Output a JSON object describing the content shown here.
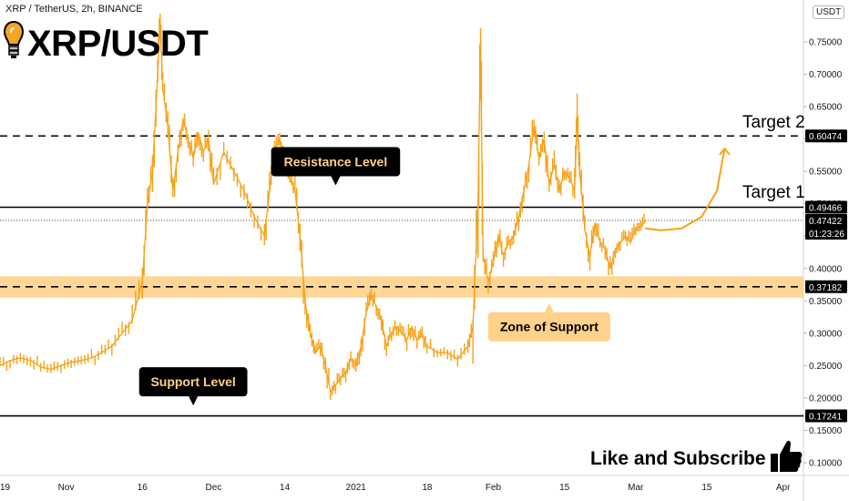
{
  "header": {
    "symbol_line": "XRP / TetherUS, 2h, BINANCE",
    "brand_title": "XRP/USDT",
    "currency": "USDT"
  },
  "chart_data": {
    "type": "line",
    "symbol": "XRP/USDT",
    "timeframe": "2h",
    "exchange": "BINANCE",
    "ylim": [
      0.095,
      0.78
    ],
    "y_ticks": [
      0.1,
      0.15,
      0.2,
      0.25,
      0.3,
      0.35,
      0.4,
      0.45,
      0.5,
      0.55,
      0.6,
      0.65,
      0.7,
      0.75
    ],
    "y_tick_labels": [
      "0.10000",
      "0.15000",
      "0.20000",
      "0.25000",
      "0.30000",
      "0.35000",
      "0.40000",
      "0.45000",
      "0.50000",
      "0.55000",
      "0.60000",
      "0.65000",
      "0.70000",
      "0.75000"
    ],
    "x_tick_labels": [
      "19",
      "Nov",
      "16",
      "Dec",
      "14",
      "2021",
      "18",
      "Feb",
      "15",
      "Mar",
      "15",
      "Apr"
    ],
    "series": [
      {
        "values": [
          [
            -4,
            0.25
          ],
          [
            -2,
            0.258
          ],
          [
            0,
            0.262
          ],
          [
            2,
            0.258
          ],
          [
            4,
            0.248
          ],
          [
            6,
            0.244
          ],
          [
            8,
            0.25
          ],
          [
            10,
            0.255
          ],
          [
            12,
            0.258
          ],
          [
            14,
            0.262
          ],
          [
            16,
            0.27
          ],
          [
            18,
            0.28
          ],
          [
            20,
            0.3
          ],
          [
            22,
            0.32
          ],
          [
            24,
            0.38
          ],
          [
            25,
            0.5
          ],
          [
            26,
            0.55
          ],
          [
            27,
            0.7
          ],
          [
            27.5,
            0.78
          ],
          [
            28,
            0.68
          ],
          [
            29,
            0.62
          ],
          [
            30,
            0.52
          ],
          [
            31,
            0.58
          ],
          [
            32,
            0.63
          ],
          [
            33,
            0.6
          ],
          [
            34,
            0.57
          ],
          [
            35,
            0.61
          ],
          [
            36,
            0.58
          ],
          [
            37,
            0.6
          ],
          [
            38,
            0.53
          ],
          [
            40,
            0.58
          ],
          [
            42,
            0.55
          ],
          [
            44,
            0.52
          ],
          [
            46,
            0.48
          ],
          [
            48,
            0.45
          ],
          [
            49,
            0.52
          ],
          [
            50,
            0.58
          ],
          [
            51,
            0.6
          ],
          [
            52,
            0.57
          ],
          [
            53,
            0.54
          ],
          [
            54,
            0.52
          ],
          [
            55,
            0.45
          ],
          [
            56,
            0.35
          ],
          [
            57,
            0.3
          ],
          [
            58,
            0.27
          ],
          [
            59,
            0.28
          ],
          [
            60,
            0.25
          ],
          [
            61,
            0.21
          ],
          [
            62,
            0.22
          ],
          [
            63,
            0.23
          ],
          [
            64,
            0.24
          ],
          [
            65,
            0.26
          ],
          [
            66,
            0.25
          ],
          [
            67,
            0.28
          ],
          [
            68,
            0.33
          ],
          [
            69,
            0.36
          ],
          [
            70,
            0.34
          ],
          [
            71,
            0.32
          ],
          [
            72,
            0.28
          ],
          [
            73,
            0.3
          ],
          [
            74,
            0.31
          ],
          [
            75,
            0.3
          ],
          [
            76,
            0.29
          ],
          [
            77,
            0.31
          ],
          [
            78,
            0.29
          ],
          [
            79,
            0.3
          ],
          [
            80,
            0.28
          ],
          [
            82,
            0.27
          ],
          [
            84,
            0.27
          ],
          [
            86,
            0.26
          ],
          [
            88,
            0.28
          ],
          [
            89,
            0.31
          ],
          [
            90,
            0.5
          ],
          [
            90.5,
            0.75
          ],
          [
            91,
            0.42
          ],
          [
            92,
            0.38
          ],
          [
            93,
            0.41
          ],
          [
            94,
            0.45
          ],
          [
            95,
            0.42
          ],
          [
            96,
            0.44
          ],
          [
            97,
            0.45
          ],
          [
            98,
            0.48
          ],
          [
            99,
            0.52
          ],
          [
            100,
            0.56
          ],
          [
            101,
            0.62
          ],
          [
            102,
            0.57
          ],
          [
            103,
            0.6
          ],
          [
            104,
            0.53
          ],
          [
            105,
            0.56
          ],
          [
            106,
            0.52
          ],
          [
            107,
            0.55
          ],
          [
            108,
            0.54
          ],
          [
            109,
            0.52
          ],
          [
            109.5,
            0.64
          ],
          [
            110,
            0.55
          ],
          [
            111,
            0.46
          ],
          [
            112,
            0.42
          ],
          [
            113,
            0.47
          ],
          [
            114,
            0.44
          ],
          [
            115,
            0.43
          ],
          [
            116,
            0.4
          ],
          [
            117,
            0.43
          ],
          [
            118,
            0.44
          ],
          [
            119,
            0.45
          ],
          [
            120,
            0.44
          ],
          [
            121,
            0.46
          ],
          [
            122,
            0.465
          ],
          [
            123,
            0.474
          ]
        ]
      }
    ],
    "x_tick_positions": [
      -4,
      9,
      24,
      38,
      52,
      66,
      80,
      93,
      107,
      121,
      135,
      150
    ],
    "price_levels": [
      {
        "value": 0.60474,
        "label": "0.60474",
        "style": "dashed",
        "color": "#000000"
      },
      {
        "value": 0.49466,
        "label": "0.49466",
        "style": "solid",
        "color": "#000000"
      },
      {
        "value": 0.47422,
        "label": "0.47422",
        "style": "dotted",
        "color": "#000000",
        "countdown": "01:23:26"
      },
      {
        "value": 0.37182,
        "label": "0.37182",
        "style": "dashed",
        "color": "#000000"
      },
      {
        "value": 0.17241,
        "label": "0.17241",
        "style": "solid",
        "color": "#000000"
      }
    ],
    "support_zone": {
      "low": 0.355,
      "high": 0.388,
      "color": "#ffd18a"
    },
    "annotations": [
      {
        "text": "Resistance Level",
        "x": 62,
        "y": 0.565,
        "pointer": "down"
      },
      {
        "text": "Support Level",
        "x": 34,
        "y": 0.225,
        "pointer": "down"
      },
      {
        "text": "Zone of Support",
        "x": 104,
        "y": 0.31,
        "pointer": "up"
      }
    ],
    "targets": [
      {
        "text": "Target 1",
        "x": 142,
        "y": 0.518
      },
      {
        "text": "Target 2",
        "x": 142,
        "y": 0.626
      }
    ],
    "projection": [
      [
        123,
        0.462
      ],
      [
        126,
        0.459
      ],
      [
        130,
        0.462
      ],
      [
        134,
        0.48
      ],
      [
        137,
        0.52
      ],
      [
        138.5,
        0.585
      ]
    ],
    "colors": {
      "line": "#f7a116",
      "grid": "#f0f3fa",
      "projection": "#f7a116"
    }
  },
  "footer": {
    "cta": "Like and Subscribe"
  },
  "icons": {
    "brand": "lightbulb-icon",
    "cta": "thumbs-up-icon"
  }
}
